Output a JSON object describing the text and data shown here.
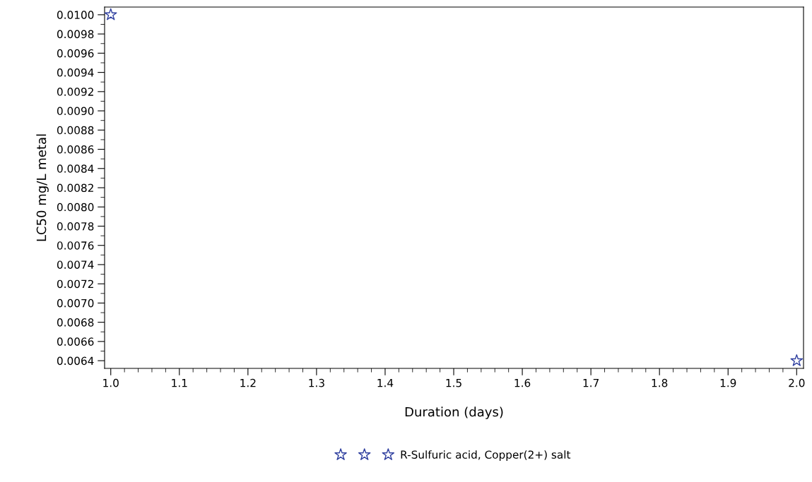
{
  "chart_data": {
    "type": "scatter",
    "xlabel": "Duration (days)",
    "ylabel": "LC50 mg/L metal",
    "x": [
      1.0,
      2.0
    ],
    "series": [
      {
        "name": "R-Sulfuric acid, Copper(2+) salt",
        "color": "#2f3f9f",
        "values": [
          0.01,
          0.0064
        ]
      }
    ],
    "marker": "star",
    "legend": "bottom",
    "grid": false,
    "xlim": [
      0.991,
      2.01
    ],
    "xticks": [
      {
        "value": 1.0,
        "label": "1.0"
      },
      1.1,
      1.2,
      1.3,
      1.4,
      1.5,
      1.6,
      1.7,
      1.8,
      1.9,
      {
        "value": 2.0,
        "label": "2.0"
      }
    ],
    "ylim": [
      0.00632,
      0.01008
    ],
    "yticks": [
      {
        "value": 0.0064,
        "label": "0.0064"
      },
      {
        "value": 0.0066,
        "label": "0.0066"
      },
      {
        "value": 0.0068,
        "label": "0.0068"
      },
      {
        "value": 0.007,
        "label": "0.0070"
      },
      {
        "value": 0.0072,
        "label": "0.0072"
      },
      {
        "value": 0.0074,
        "label": "0.0074"
      },
      {
        "value": 0.0076,
        "label": "0.0076"
      },
      {
        "value": 0.0078,
        "label": "0.0078"
      },
      {
        "value": 0.008,
        "label": "0.0080"
      },
      {
        "value": 0.0082,
        "label": "0.0082"
      },
      {
        "value": 0.0084,
        "label": "0.0084"
      },
      {
        "value": 0.0086,
        "label": "0.0086"
      },
      {
        "value": 0.0088,
        "label": "0.0088"
      },
      {
        "value": 0.009,
        "label": "0.0090"
      },
      {
        "value": 0.0092,
        "label": "0.0092"
      },
      {
        "value": 0.0094,
        "label": "0.0094"
      },
      {
        "value": 0.0096,
        "label": "0.0096"
      },
      {
        "value": 0.0098,
        "label": "0.0098"
      },
      {
        "value": 0.01,
        "label": "0.0100"
      }
    ]
  }
}
